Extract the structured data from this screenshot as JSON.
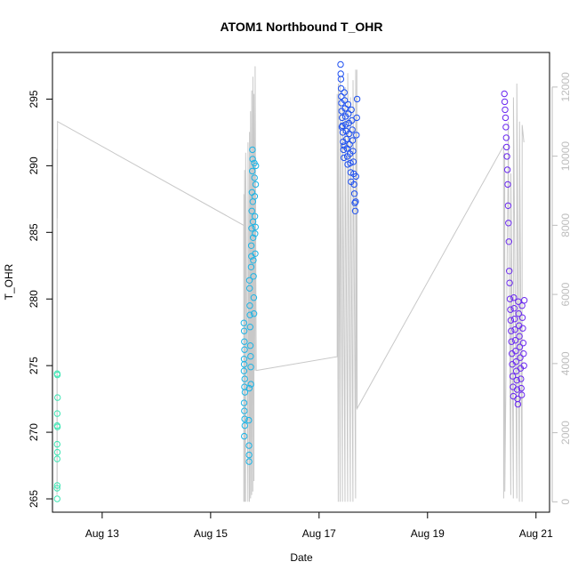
{
  "chart_data": {
    "type": "scatter",
    "title": "ATOM1 Northbound T_OHR",
    "xlabel": "Date",
    "ylabel": "T_OHR",
    "x_unit": "date (2023-08)",
    "xlim": [
      "Aug 12 02:00",
      "Aug 21 06:00"
    ],
    "ylim": [
      264,
      298.5
    ],
    "y2lim": [
      -300,
      13000
    ],
    "x_ticks": [
      {
        "date": "Aug 13 00:00",
        "label": "Aug 13"
      },
      {
        "date": "Aug 15 00:00",
        "label": "Aug 15"
      },
      {
        "date": "Aug 17 00:00",
        "label": "Aug 17"
      },
      {
        "date": "Aug 19 00:00",
        "label": "Aug 19"
      },
      {
        "date": "Aug 21 00:00",
        "label": "Aug 21"
      }
    ],
    "y_ticks": [
      265,
      270,
      275,
      280,
      285,
      290,
      295
    ],
    "y2_ticks": [
      0,
      2000,
      4000,
      6000,
      8000,
      10000,
      12000
    ],
    "colors": {
      "background_line": "#c8c8c8",
      "right_axis": "#bdbdbd",
      "cluster1": "#3ee6b4",
      "cluster2": "#1cb4e6",
      "cluster3": "#1e50f0",
      "cluster4": "#6a28f0"
    },
    "series": [
      {
        "color": "#3ee6b4",
        "points": [
          [
            "Aug 12 04:05",
            274.4
          ],
          [
            "Aug 12 04:10",
            274.3
          ],
          [
            "Aug 12 04:15",
            272.6
          ],
          [
            "Aug 12 04:08",
            271.4
          ],
          [
            "Aug 12 04:06",
            270.5
          ],
          [
            "Aug 12 04:12",
            270.4
          ],
          [
            "Aug 12 04:05",
            269.1
          ],
          [
            "Aug 12 04:09",
            268.5
          ],
          [
            "Aug 12 04:04",
            268.0
          ],
          [
            "Aug 12 04:07",
            266.0
          ],
          [
            "Aug 12 04:03",
            265.8
          ],
          [
            "Aug 12 04:06",
            265.0
          ]
        ]
      },
      {
        "color": "#1cb4e6",
        "points": [
          [
            "Aug 15 14:45",
            278.2
          ],
          [
            "Aug 15 14:50",
            277.6
          ],
          [
            "Aug 15 14:55",
            276.8
          ],
          [
            "Aug 15 15:00",
            276.2
          ],
          [
            "Aug 15 14:48",
            275.5
          ],
          [
            "Aug 15 14:52",
            275.1
          ],
          [
            "Aug 15 14:46",
            274.6
          ],
          [
            "Aug 15 15:05",
            274.0
          ],
          [
            "Aug 15 14:58",
            273.4
          ],
          [
            "Aug 15 15:10",
            273.0
          ],
          [
            "Aug 15 14:49",
            272.2
          ],
          [
            "Aug 15 14:56",
            271.6
          ],
          [
            "Aug 15 15:02",
            271.0
          ],
          [
            "Aug 15 15:08",
            270.5
          ],
          [
            "Aug 15 14:53",
            269.7
          ],
          [
            "Aug 15 16:55",
            270.9
          ],
          [
            "Aug 15 16:58",
            269.0
          ],
          [
            "Aug 15 17:00",
            268.3
          ],
          [
            "Aug 15 17:02",
            267.8
          ],
          [
            "Aug 15 17:10",
            281.4
          ],
          [
            "Aug 15 17:14",
            280.8
          ],
          [
            "Aug 15 17:20",
            279.5
          ],
          [
            "Aug 15 17:25",
            278.8
          ],
          [
            "Aug 15 17:30",
            277.9
          ],
          [
            "Aug 15 17:35",
            276.5
          ],
          [
            "Aug 15 17:40",
            275.7
          ],
          [
            "Aug 15 17:45",
            274.9
          ],
          [
            "Aug 15 17:50",
            273.6
          ],
          [
            "Aug 15 17:55",
            282.4
          ],
          [
            "Aug 15 18:00",
            284.0
          ],
          [
            "Aug 15 18:05",
            283.2
          ],
          [
            "Aug 15 18:10",
            285.3
          ],
          [
            "Aug 15 18:15",
            286.6
          ],
          [
            "Aug 15 18:20",
            288.0
          ],
          [
            "Aug 15 18:25",
            289.6
          ],
          [
            "Aug 15 18:30",
            291.2
          ],
          [
            "Aug 15 18:35",
            290.5
          ],
          [
            "Aug 15 18:40",
            287.3
          ],
          [
            "Aug 15 18:45",
            285.8
          ],
          [
            "Aug 15 18:50",
            284.6
          ],
          [
            "Aug 15 18:55",
            282.9
          ],
          [
            "Aug 15 19:00",
            281.7
          ],
          [
            "Aug 15 19:05",
            280.1
          ],
          [
            "Aug 15 19:10",
            278.9
          ],
          [
            "Aug 15 19:20",
            290.2
          ],
          [
            "Aug 15 19:25",
            289.1
          ],
          [
            "Aug 15 19:30",
            287.7
          ],
          [
            "Aug 15 19:35",
            286.2
          ],
          [
            "Aug 15 19:40",
            284.9
          ],
          [
            "Aug 15 19:45",
            283.4
          ],
          [
            "Aug 15 19:50",
            285.4
          ],
          [
            "Aug 15 19:55",
            288.6
          ],
          [
            "Aug 15 20:00",
            290.0
          ],
          [
            "Aug 15 17:05",
            273.3
          ]
        ]
      },
      {
        "color": "#1e50f0",
        "points": [
          [
            "Aug 17 09:30",
            297.6
          ],
          [
            "Aug 17 09:35",
            296.9
          ],
          [
            "Aug 17 09:40",
            296.5
          ],
          [
            "Aug 17 09:45",
            295.8
          ],
          [
            "Aug 17 09:50",
            295.2
          ],
          [
            "Aug 17 09:55",
            294.7
          ],
          [
            "Aug 17 10:00",
            294.1
          ],
          [
            "Aug 17 10:10",
            293.6
          ],
          [
            "Aug 17 10:20",
            293.0
          ],
          [
            "Aug 17 10:30",
            292.5
          ],
          [
            "Aug 17 10:40",
            291.8
          ],
          [
            "Aug 17 10:50",
            291.2
          ],
          [
            "Aug 17 11:00",
            290.6
          ],
          [
            "Aug 17 11:10",
            295.5
          ],
          [
            "Aug 17 11:20",
            294.9
          ],
          [
            "Aug 17 11:30",
            294.3
          ],
          [
            "Aug 17 11:40",
            293.7
          ],
          [
            "Aug 17 11:50",
            293.1
          ],
          [
            "Aug 17 12:00",
            292.6
          ],
          [
            "Aug 17 12:10",
            292.0
          ],
          [
            "Aug 17 12:20",
            291.3
          ],
          [
            "Aug 17 12:30",
            290.7
          ],
          [
            "Aug 17 12:40",
            290.1
          ],
          [
            "Aug 17 12:50",
            294.6
          ],
          [
            "Aug 17 13:00",
            293.9
          ],
          [
            "Aug 17 13:10",
            293.2
          ],
          [
            "Aug 17 13:20",
            292.4
          ],
          [
            "Aug 17 13:30",
            291.6
          ],
          [
            "Aug 17 13:40",
            290.9
          ],
          [
            "Aug 17 13:50",
            290.2
          ],
          [
            "Aug 17 14:00",
            289.5
          ],
          [
            "Aug 17 14:10",
            288.8
          ],
          [
            "Aug 17 14:20",
            294.2
          ],
          [
            "Aug 17 14:30",
            293.4
          ],
          [
            "Aug 17 14:40",
            292.7
          ],
          [
            "Aug 17 14:50",
            291.9
          ],
          [
            "Aug 17 15:00",
            291.1
          ],
          [
            "Aug 17 15:10",
            290.3
          ],
          [
            "Aug 17 15:20",
            289.4
          ],
          [
            "Aug 17 15:30",
            288.6
          ],
          [
            "Aug 17 15:40",
            287.9
          ],
          [
            "Aug 17 15:50",
            287.2
          ],
          [
            "Aug 17 16:00",
            286.6
          ],
          [
            "Aug 17 16:10",
            287.3
          ],
          [
            "Aug 17 16:20",
            289.2
          ],
          [
            "Aug 17 16:30",
            292.3
          ],
          [
            "Aug 17 16:40",
            293.6
          ],
          [
            "Aug 17 16:50",
            295.0
          ],
          [
            "Aug 17 10:05",
            292.9
          ],
          [
            "Aug 17 11:05",
            291.5
          ]
        ]
      },
      {
        "color": "#6a28f0",
        "points": [
          [
            "Aug 20 10:00",
            295.4
          ],
          [
            "Aug 20 10:10",
            294.8
          ],
          [
            "Aug 20 10:20",
            294.2
          ],
          [
            "Aug 20 10:30",
            293.6
          ],
          [
            "Aug 20 10:40",
            292.9
          ],
          [
            "Aug 20 10:50",
            292.1
          ],
          [
            "Aug 20 11:00",
            291.4
          ],
          [
            "Aug 20 11:10",
            290.7
          ],
          [
            "Aug 20 11:20",
            289.7
          ],
          [
            "Aug 20 11:30",
            288.6
          ],
          [
            "Aug 20 11:40",
            287.0
          ],
          [
            "Aug 20 11:50",
            285.7
          ],
          [
            "Aug 20 12:00",
            284.3
          ],
          [
            "Aug 20 12:10",
            282.1
          ],
          [
            "Aug 20 12:20",
            281.2
          ],
          [
            "Aug 20 12:30",
            280.0
          ],
          [
            "Aug 20 12:40",
            279.2
          ],
          [
            "Aug 20 12:50",
            278.4
          ],
          [
            "Aug 20 13:00",
            277.6
          ],
          [
            "Aug 20 13:10",
            276.8
          ],
          [
            "Aug 20 13:20",
            275.9
          ],
          [
            "Aug 20 13:30",
            275.1
          ],
          [
            "Aug 20 13:40",
            274.2
          ],
          [
            "Aug 20 13:50",
            273.4
          ],
          [
            "Aug 20 14:00",
            272.7
          ],
          [
            "Aug 20 14:10",
            280.1
          ],
          [
            "Aug 20 14:20",
            279.3
          ],
          [
            "Aug 20 14:30",
            278.5
          ],
          [
            "Aug 20 14:40",
            277.7
          ],
          [
            "Aug 20 14:50",
            276.9
          ],
          [
            "Aug 20 15:00",
            276.1
          ],
          [
            "Aug 20 15:10",
            275.3
          ],
          [
            "Aug 20 15:20",
            274.6
          ],
          [
            "Aug 20 15:30",
            273.9
          ],
          [
            "Aug 20 15:40",
            273.2
          ],
          [
            "Aug 20 15:50",
            272.5
          ],
          [
            "Aug 20 16:00",
            272.1
          ],
          [
            "Aug 20 16:10",
            279.8
          ],
          [
            "Aug 20 16:20",
            278.9
          ],
          [
            "Aug 20 16:30",
            278.0
          ],
          [
            "Aug 20 16:40",
            277.2
          ],
          [
            "Aug 20 16:50",
            276.4
          ],
          [
            "Aug 20 17:00",
            275.6
          ],
          [
            "Aug 20 17:10",
            274.8
          ],
          [
            "Aug 20 17:20",
            274.0
          ],
          [
            "Aug 20 17:30",
            273.3
          ],
          [
            "Aug 20 17:40",
            272.8
          ],
          [
            "Aug 20 17:50",
            279.5
          ],
          [
            "Aug 20 18:00",
            278.6
          ],
          [
            "Aug 20 18:10",
            277.8
          ],
          [
            "Aug 20 18:20",
            276.7
          ],
          [
            "Aug 20 18:30",
            275.9
          ],
          [
            "Aug 20 18:40",
            275.0
          ],
          [
            "Aug 20 18:50",
            279.9
          ]
        ]
      }
    ],
    "right_axis_series": {
      "note_type": "line",
      "points": [
        [
          "Aug 12 04:00",
          200
        ],
        [
          "Aug 12 04:02",
          9500
        ],
        [
          "Aug 12 04:04",
          300
        ],
        [
          "Aug 12 04:06",
          10200
        ],
        [
          "Aug 12 04:10",
          8200
        ],
        [
          "Aug 12 04:14",
          11000
        ],
        [
          "Aug 15 14:40",
          8000
        ],
        [
          "Aug 15 14:42",
          0
        ],
        [
          "Aug 15 14:44",
          8900
        ],
        [
          "Aug 15 15:00",
          0
        ],
        [
          "Aug 15 15:02",
          9600
        ],
        [
          "Aug 15 15:30",
          0
        ],
        [
          "Aug 15 15:32",
          10100
        ],
        [
          "Aug 15 16:30",
          0
        ],
        [
          "Aug 15 16:32",
          10400
        ],
        [
          "Aug 15 17:10",
          0
        ],
        [
          "Aug 15 17:12",
          10700
        ],
        [
          "Aug 15 17:40",
          100
        ],
        [
          "Aug 15 17:42",
          11300
        ],
        [
          "Aug 15 18:10",
          200
        ],
        [
          "Aug 15 18:12",
          11900
        ],
        [
          "Aug 15 18:40",
          300
        ],
        [
          "Aug 15 18:42",
          12300
        ],
        [
          "Aug 15 19:10",
          600
        ],
        [
          "Aug 15 19:12",
          11800
        ],
        [
          "Aug 15 19:40",
          3800
        ],
        [
          "Aug 15 19:42",
          12600
        ],
        [
          "Aug 15 20:10",
          3800
        ],
        [
          "Aug 17 08:00",
          4200
        ],
        [
          "Aug 17 08:02",
          11800
        ],
        [
          "Aug 17 08:30",
          0
        ],
        [
          "Aug 17 08:32",
          12100
        ],
        [
          "Aug 17 09:20",
          0
        ],
        [
          "Aug 17 09:22",
          12300
        ],
        [
          "Aug 17 10:20",
          0
        ],
        [
          "Aug 17 10:22",
          11500
        ],
        [
          "Aug 17 11:30",
          0
        ],
        [
          "Aug 17 11:32",
          12000
        ],
        [
          "Aug 17 12:40",
          0
        ],
        [
          "Aug 17 12:42",
          12400
        ],
        [
          "Aug 17 13:50",
          0
        ],
        [
          "Aug 17 13:52",
          11700
        ],
        [
          "Aug 17 15:00",
          0
        ],
        [
          "Aug 17 15:02",
          12200
        ],
        [
          "Aug 17 16:10",
          100
        ],
        [
          "Aug 17 16:12",
          12500
        ],
        [
          "Aug 17 16:40",
          2700
        ],
        [
          "Aug 17 16:42",
          12500
        ],
        [
          "Aug 17 16:50",
          2700
        ],
        [
          "Aug 20 09:40",
          10300
        ],
        [
          "Aug 20 09:42",
          100
        ],
        [
          "Aug 20 10:10",
          10100
        ],
        [
          "Aug 20 10:12",
          300
        ],
        [
          "Aug 20 11:40",
          9700
        ],
        [
          "Aug 20 11:42",
          11000
        ],
        [
          "Aug 20 12:50",
          200
        ],
        [
          "Aug 20 12:52",
          9500
        ],
        [
          "Aug 20 14:00",
          100
        ],
        [
          "Aug 20 14:02",
          11700
        ],
        [
          "Aug 20 15:30",
          100
        ],
        [
          "Aug 20 15:32",
          12100
        ],
        [
          "Aug 20 16:40",
          0
        ],
        [
          "Aug 20 16:42",
          11000
        ],
        [
          "Aug 20 17:50",
          0
        ],
        [
          "Aug 20 17:52",
          10900
        ],
        [
          "Aug 20 18:40",
          10400
        ]
      ]
    }
  }
}
